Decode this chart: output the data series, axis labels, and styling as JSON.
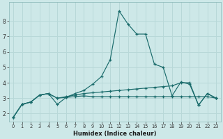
{
  "xlabel": "Humidex (Indice chaleur)",
  "bg_color": "#cde8e8",
  "line_color": "#1a6b6b",
  "grid_color": "#b8d8d8",
  "xlim": [
    -0.5,
    23.5
  ],
  "ylim": [
    1.5,
    9.2
  ],
  "series": [
    [
      1.75,
      2.6,
      2.75,
      3.2,
      3.3,
      2.6,
      3.05,
      3.3,
      3.5,
      3.9,
      4.4,
      5.5,
      8.65,
      7.8,
      7.15,
      7.15,
      5.2,
      5.0,
      3.15,
      4.05,
      3.9,
      2.55,
      3.3,
      3.0
    ],
    [
      1.75,
      2.6,
      2.75,
      3.2,
      3.3,
      3.0,
      3.1,
      3.2,
      3.3,
      3.35,
      3.4,
      3.45,
      3.5,
      3.55,
      3.6,
      3.65,
      3.7,
      3.75,
      3.8,
      4.0,
      4.0,
      2.55,
      3.3,
      3.0
    ],
    [
      1.75,
      2.6,
      2.75,
      3.2,
      3.3,
      3.0,
      3.05,
      3.1,
      3.15,
      3.1,
      3.1,
      3.1,
      3.1,
      3.1,
      3.1,
      3.1,
      3.1,
      3.1,
      3.1,
      3.1,
      3.1,
      3.1,
      3.1,
      3.0
    ]
  ],
  "yticks": [
    2,
    3,
    4,
    5,
    6,
    7,
    8
  ],
  "xticks": [
    0,
    1,
    2,
    3,
    4,
    5,
    6,
    7,
    8,
    9,
    10,
    11,
    12,
    13,
    14,
    15,
    16,
    17,
    18,
    19,
    20,
    21,
    22,
    23
  ]
}
